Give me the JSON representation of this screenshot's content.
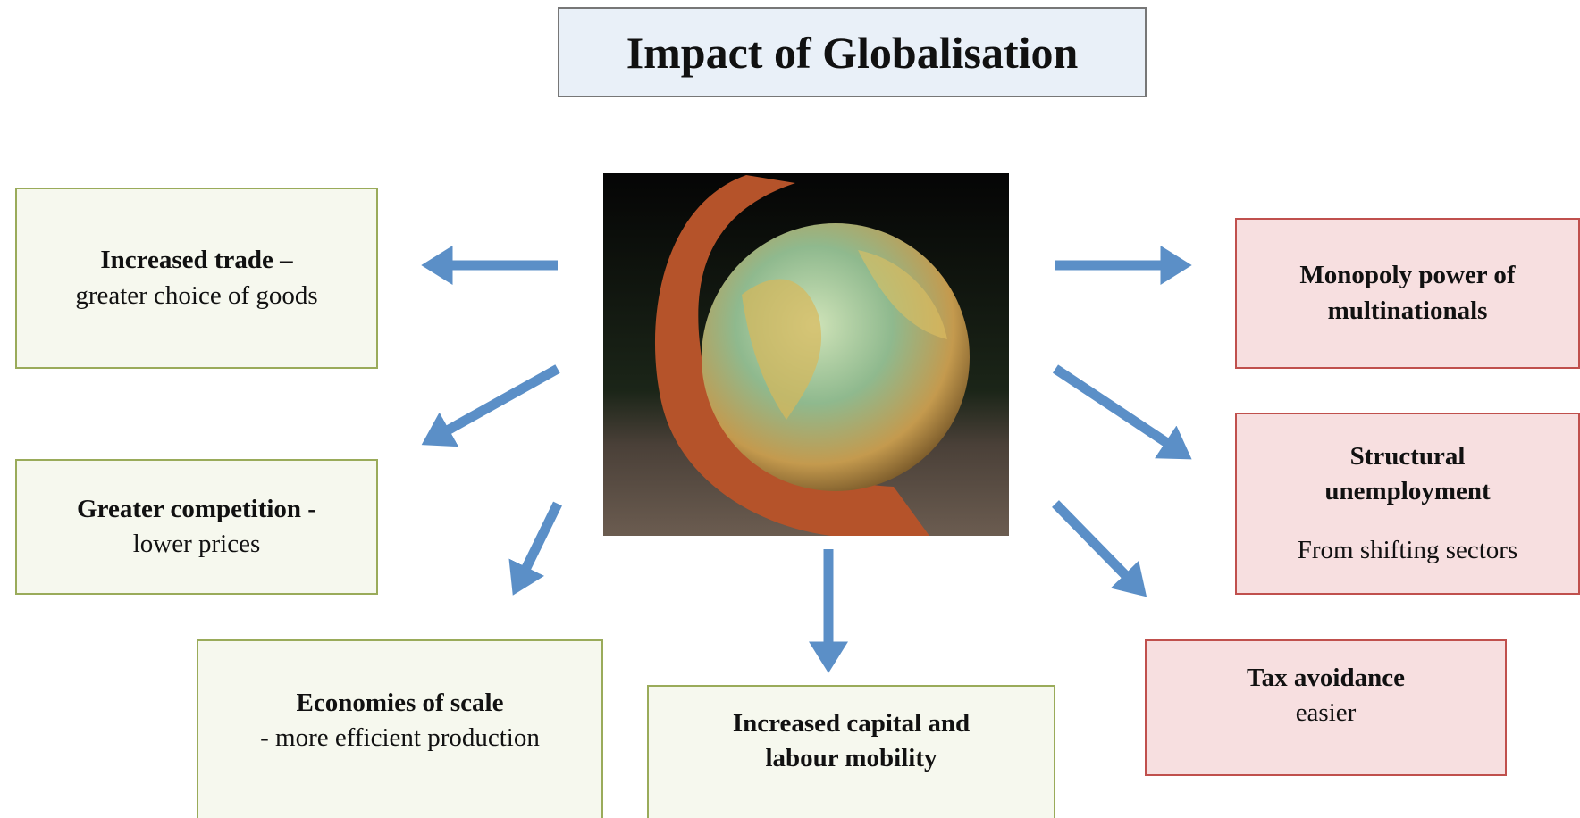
{
  "title": "Impact of Globalisation",
  "nodes": [
    {
      "heading": "Increased trade –",
      "detail": "greater choice of goods"
    },
    {
      "heading": "Greater competition -",
      "detail": "lower prices"
    },
    {
      "heading": "Economies of scale",
      "detail": "- more efficient production"
    },
    {
      "heading": "Increased capital and labour mobility"
    },
    {
      "heading": "Monopoly power of multinationals"
    },
    {
      "heading": "Structural unemployment",
      "detail": "From shifting sectors"
    },
    {
      "heading": "Tax avoidance",
      "detail": "easier"
    }
  ]
}
